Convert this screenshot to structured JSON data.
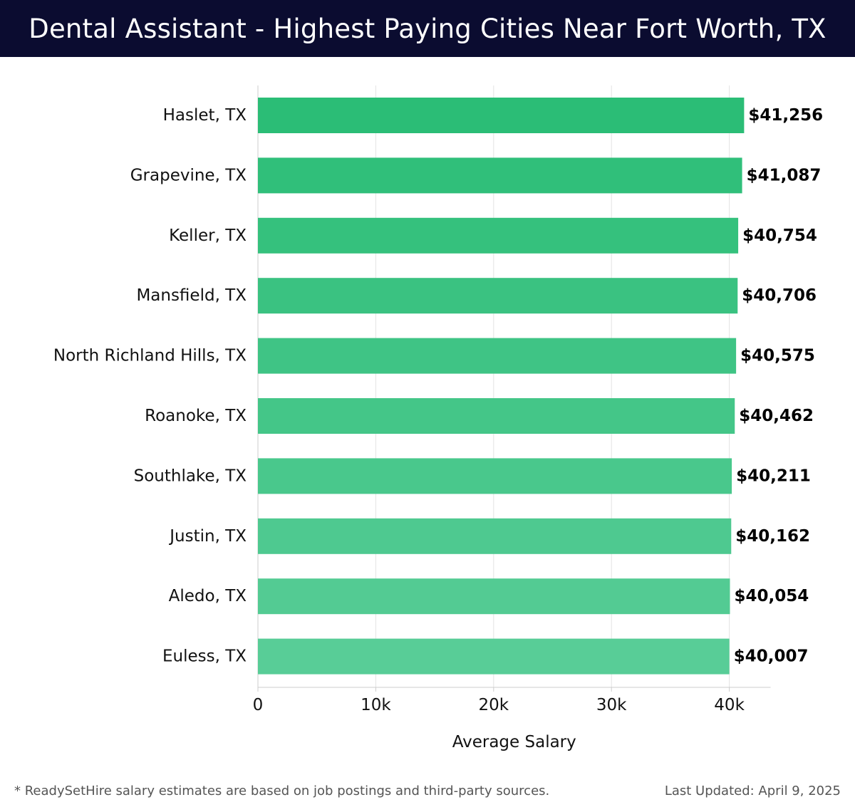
{
  "header": {
    "title": "Dental Assistant - Highest Paying Cities Near Fort Worth, TX"
  },
  "chart_data": {
    "type": "bar",
    "orientation": "horizontal",
    "title": "Dental Assistant - Highest Paying Cities Near Fort Worth, TX",
    "xlabel": "Average Salary",
    "ylabel": "",
    "categories": [
      "Haslet, TX",
      "Grapevine, TX",
      "Keller, TX",
      "Mansfield, TX",
      "North Richland Hills, TX",
      "Roanoke, TX",
      "Southlake, TX",
      "Justin, TX",
      "Aledo, TX",
      "Euless, TX"
    ],
    "values": [
      41256,
      41087,
      40754,
      40706,
      40575,
      40462,
      40211,
      40162,
      40054,
      40007
    ],
    "value_labels": [
      "$41,256",
      "$41,087",
      "$40,754",
      "$40,706",
      "$40,575",
      "$40,462",
      "$40,211",
      "$40,162",
      "$40,054",
      "$40,007"
    ],
    "xlim": [
      0,
      43500
    ],
    "xticks": [
      0,
      10000,
      20000,
      30000,
      40000
    ],
    "xtick_labels": [
      "0",
      "10k",
      "20k",
      "30k",
      "40k"
    ],
    "grid": true,
    "colors": {
      "bar_start": "#2bbd76",
      "bar_end": "#58cd97",
      "grid": "#e3e3e3",
      "axis": "#cccccc"
    }
  },
  "footer": {
    "note": "* ReadySetHire salary estimates are based on job postings and third-party sources.",
    "updated": "Last Updated: April 9, 2025"
  }
}
